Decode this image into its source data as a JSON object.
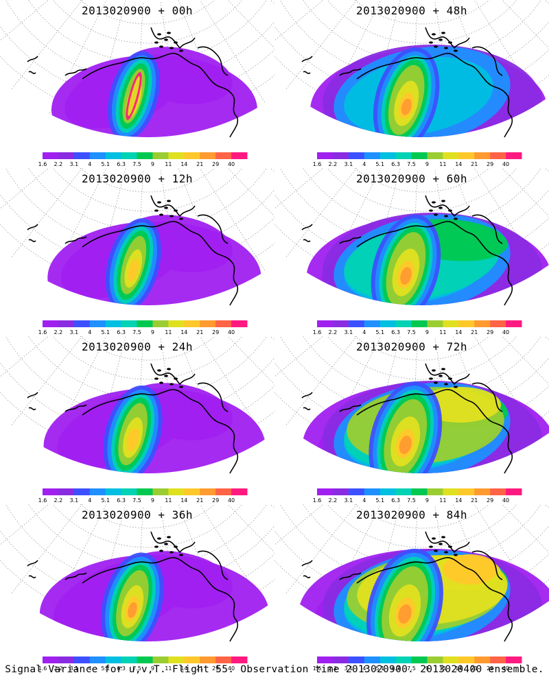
{
  "panels": [
    {
      "title": "2013020900 + 00h",
      "hour": 0
    },
    {
      "title": "2013020900 + 48h",
      "hour": 48
    },
    {
      "title": "2013020900 + 12h",
      "hour": 12
    },
    {
      "title": "2013020900 + 60h",
      "hour": 60
    },
    {
      "title": "2013020900 + 24h",
      "hour": 24
    },
    {
      "title": "2013020900 + 72h",
      "hour": 72
    },
    {
      "title": "2013020900 + 36h",
      "hour": 36
    },
    {
      "title": "2013020900 + 84h",
      "hour": 84
    }
  ],
  "colorbar": {
    "labels": [
      "1.6",
      "2.2",
      "3.1",
      "4",
      "5.1",
      "6.3",
      "7.5",
      "9",
      "11",
      "14",
      "21",
      "29",
      "40"
    ],
    "colors": [
      "#a020f0",
      "#8a2be2",
      "#3c50ff",
      "#1e90ff",
      "#00bfe0",
      "#00d2b4",
      "#00c850",
      "#9acd32",
      "#e0e020",
      "#ffc82a",
      "#ff9a30",
      "#ff6347",
      "#ff1a80"
    ]
  },
  "caption": "Signal Variance for u,v,T. Flight 55. Observation time 2013020900. 2013020400 ensemble."
}
